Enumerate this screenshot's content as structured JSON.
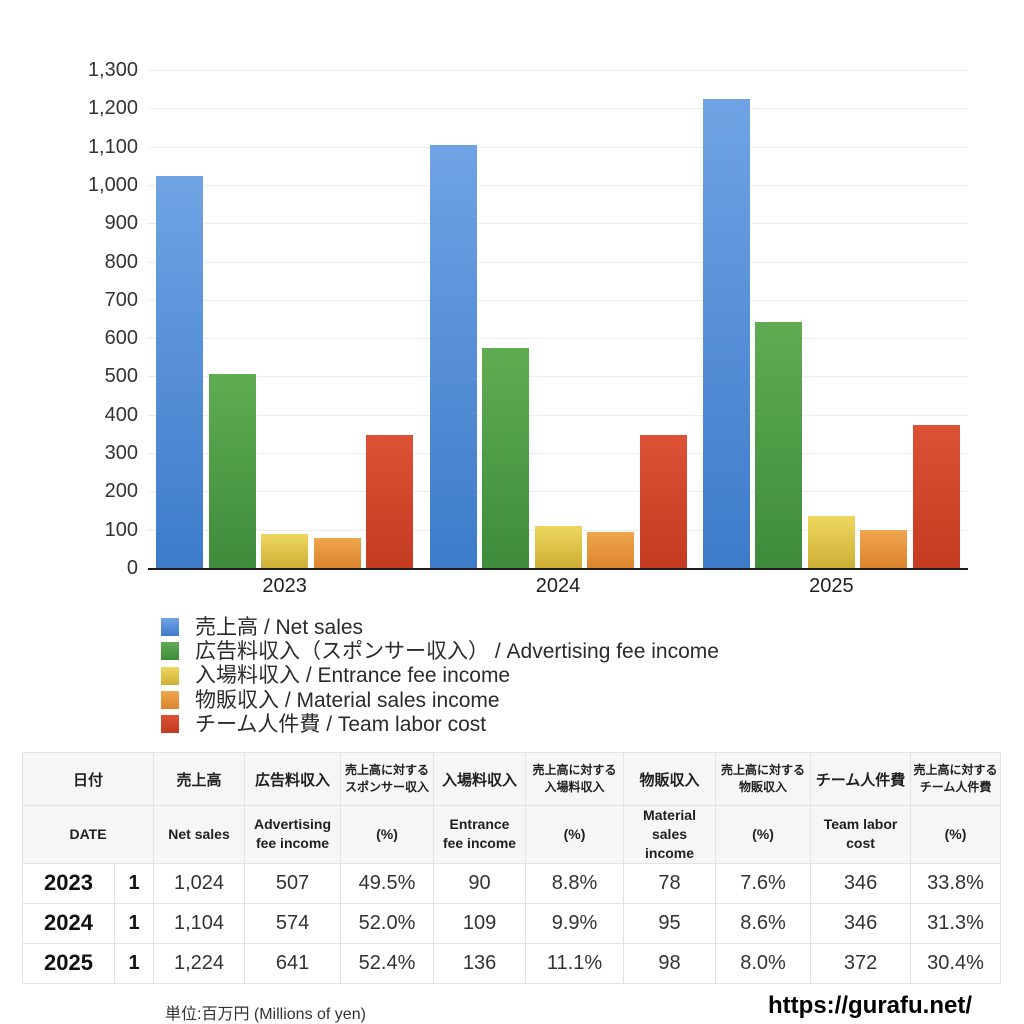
{
  "chart_data": {
    "type": "bar",
    "categories": [
      "2023",
      "2024",
      "2025"
    ],
    "series": [
      {
        "name": "売上高 / Net sales",
        "values": [
          1024,
          1104,
          1224
        ],
        "color_top": "#6FA3E4",
        "color_bottom": "#3D7BC9"
      },
      {
        "name": "広告料収入（スポンサー収入） / Advertising fee income",
        "values": [
          507,
          574,
          641
        ],
        "color_top": "#5FAC52",
        "color_bottom": "#3E8B3B"
      },
      {
        "name": "入場料収入 / Entrance fee income",
        "values": [
          90,
          109,
          136
        ],
        "color_top": "#EFD75F",
        "color_bottom": "#CDAF35"
      },
      {
        "name": "物販収入 / Material sales income",
        "values": [
          78,
          95,
          98
        ],
        "color_top": "#EFA64E",
        "color_bottom": "#DC842E"
      },
      {
        "name": "チーム人件費 / Team labor cost",
        "values": [
          346,
          346,
          372
        ],
        "color_top": "#DD5136",
        "color_bottom": "#C33B21"
      }
    ],
    "title": "",
    "xlabel": "",
    "ylabel": "",
    "ylim": [
      0,
      1300
    ],
    "ytick_step": 100,
    "grid": true,
    "legend_position": "bottom-left"
  },
  "table": {
    "header_jp": [
      "日付",
      "売上高",
      "広告料収入",
      "売上高に対する\nスポンサー収入",
      "入場料収入",
      "売上高に対する\n入場料収入",
      "物販収入",
      "売上高に対する\n物販収入",
      "チーム人件費",
      "売上高に対する\nチーム人件費"
    ],
    "header_en": [
      "DATE",
      "Net sales",
      "Advertising\nfee income",
      "(%)",
      "Entrance\nfee income",
      "(%)",
      "Material\nsales\nincome",
      "(%)",
      "Team labor\ncost",
      "(%)"
    ],
    "small_jp_columns": [
      3,
      5,
      7,
      9
    ],
    "rows": [
      {
        "year": "2023",
        "month": "1",
        "values": [
          "1,024",
          "507",
          "49.5%",
          "90",
          "8.8%",
          "78",
          "7.6%",
          "346",
          "33.8%"
        ]
      },
      {
        "year": "2024",
        "month": "1",
        "values": [
          "1,104",
          "574",
          "52.0%",
          "109",
          "9.9%",
          "95",
          "8.6%",
          "346",
          "31.3%"
        ]
      },
      {
        "year": "2025",
        "month": "1",
        "values": [
          "1,224",
          "641",
          "52.4%",
          "136",
          "11.1%",
          "98",
          "8.0%",
          "372",
          "30.4%"
        ]
      }
    ]
  },
  "footer": {
    "unit_note": "単位:百万円 (Millions of yen)",
    "site_url": "https://gurafu.net/"
  }
}
